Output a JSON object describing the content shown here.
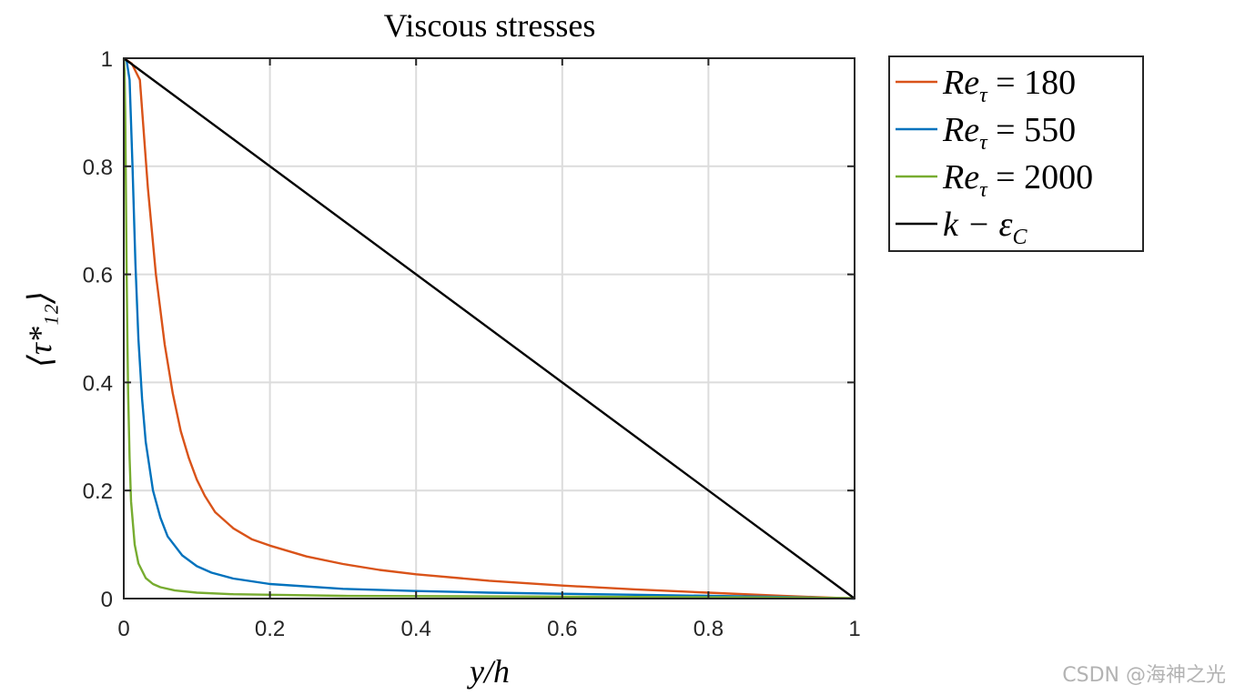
{
  "chart_data": {
    "type": "line",
    "title": "Viscous stresses",
    "xlabel": "y/h",
    "ylabel": "⟨τ*₁₂⟩",
    "xlim": [
      0,
      1
    ],
    "ylim": [
      0,
      1
    ],
    "xticks": [
      "0",
      "0.2",
      "0.4",
      "0.6",
      "0.8",
      "1"
    ],
    "yticks": [
      "0",
      "0.2",
      "0.4",
      "0.6",
      "0.8",
      "1"
    ],
    "grid": true,
    "legend_position": "outside-top-right",
    "series": [
      {
        "name": "Re_τ = 180",
        "color": "#d95319",
        "x": [
          0,
          0.011,
          0.022,
          0.033,
          0.044,
          0.056,
          0.067,
          0.078,
          0.089,
          0.1,
          0.111,
          0.125,
          0.15,
          0.175,
          0.2,
          0.25,
          0.3,
          0.35,
          0.4,
          0.5,
          0.6,
          0.7,
          0.8,
          0.9,
          1.0
        ],
        "y": [
          1.0,
          0.99,
          0.96,
          0.76,
          0.6,
          0.47,
          0.38,
          0.31,
          0.26,
          0.22,
          0.19,
          0.16,
          0.13,
          0.11,
          0.098,
          0.078,
          0.064,
          0.053,
          0.045,
          0.033,
          0.024,
          0.017,
          0.011,
          0.005,
          0.0
        ]
      },
      {
        "name": "Re_τ = 550",
        "color": "#0072bd",
        "x": [
          0,
          0.004,
          0.008,
          0.012,
          0.016,
          0.02,
          0.025,
          0.03,
          0.04,
          0.05,
          0.06,
          0.08,
          0.1,
          0.12,
          0.15,
          0.2,
          0.3,
          0.4,
          0.5,
          0.6,
          0.7,
          0.8,
          0.9,
          1.0
        ],
        "y": [
          1.0,
          0.995,
          0.96,
          0.8,
          0.62,
          0.48,
          0.37,
          0.29,
          0.2,
          0.15,
          0.115,
          0.08,
          0.06,
          0.048,
          0.037,
          0.027,
          0.018,
          0.014,
          0.011,
          0.009,
          0.007,
          0.005,
          0.003,
          0.0
        ]
      },
      {
        "name": "Re_τ = 2000",
        "color": "#77ac30",
        "x": [
          0,
          0.001,
          0.002,
          0.003,
          0.004,
          0.005,
          0.006,
          0.008,
          0.01,
          0.015,
          0.02,
          0.03,
          0.04,
          0.05,
          0.07,
          0.1,
          0.15,
          0.2,
          0.3,
          0.5,
          0.7,
          0.9,
          1.0
        ],
        "y": [
          1.0,
          0.98,
          0.9,
          0.75,
          0.6,
          0.48,
          0.38,
          0.26,
          0.18,
          0.1,
          0.065,
          0.038,
          0.027,
          0.021,
          0.015,
          0.011,
          0.008,
          0.007,
          0.005,
          0.004,
          0.003,
          0.002,
          0.001
        ]
      },
      {
        "name": "k − ε_C",
        "color": "#000000",
        "x": [
          0,
          1
        ],
        "y": [
          1,
          0
        ]
      }
    ]
  },
  "legend": [
    {
      "base": "Re",
      "sub": "τ",
      "rest": " = 180",
      "color": "#d95319"
    },
    {
      "base": "Re",
      "sub": "τ",
      "rest": " = 550",
      "color": "#0072bd"
    },
    {
      "base": "Re",
      "sub": "τ",
      "rest": " = 2000",
      "color": "#77ac30"
    },
    {
      "base": "k − ε",
      "sub": "C",
      "rest": "",
      "color": "#000000"
    }
  ],
  "watermark": "CSDN @海神之光"
}
